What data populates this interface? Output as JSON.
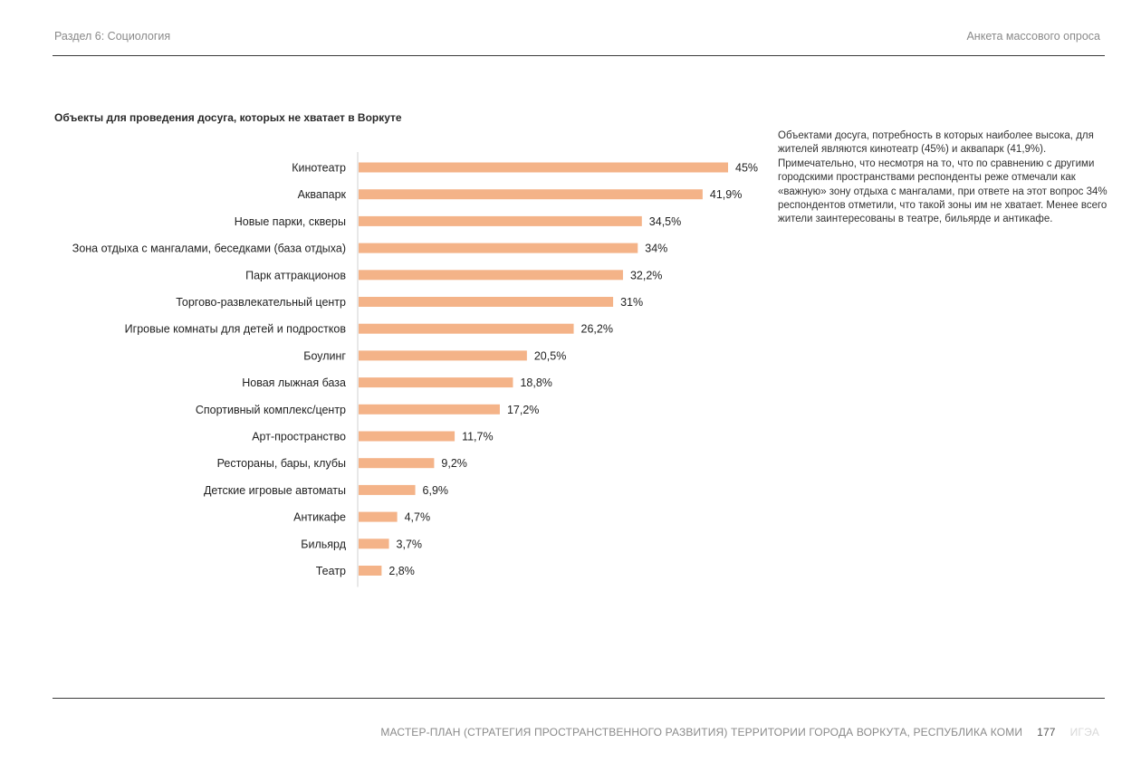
{
  "header": {
    "section": "Раздел 6: Социология",
    "document": "Анкета массового опроса"
  },
  "chart_data": {
    "type": "bar",
    "orientation": "horizontal",
    "title": "Объекты для проведения досуга, которых не хватает в Воркуте",
    "categories": [
      "Кинотеатр",
      "Аквапарк",
      "Новые парки, скверы",
      "Зона отдыха с мангалами, беседками (база отдыха)",
      "Парк аттракционов",
      "Торгово-развлекательный центр",
      "Игровые комнаты для детей и подростков",
      "Боулинг",
      "Новая лыжная база",
      "Спортивный комплекс/центр",
      "Арт-пространство",
      "Рестораны, бары, клубы",
      "Детские игровые автоматы",
      "Антикафе",
      "Бильярд",
      "Театр"
    ],
    "values": [
      45,
      41.9,
      34.5,
      34,
      32.2,
      31,
      26.2,
      20.5,
      18.8,
      17.2,
      11.7,
      9.2,
      6.9,
      4.7,
      3.7,
      2.8
    ],
    "labels": [
      "45%",
      "41,9%",
      "34,5%",
      "34%",
      "32,2%",
      "31%",
      "26,2%",
      "20,5%",
      "18,8%",
      "17,2%",
      "11,7%",
      "9,2%",
      "6,9%",
      "4,7%",
      "3,7%",
      "2,8%"
    ],
    "bar_color": "#f4b388",
    "xlim": [
      0,
      45
    ],
    "grid": false
  },
  "note": "Объектами досуга, потребность в которых наиболее высока, для жителей являются кинотеатр (45%) и аквапарк (41,9%). Примечательно, что несмотря на то, что по сравнению с другими городскими пространствами респонденты реже отмечали как «важную» зону отдыха с мангалами, при ответе на этот вопрос 34% респондентов отметили, что такой зоны им не хватает. Менее всего жители заинтересованы в театре, бильярде и антикафе.",
  "footer": {
    "text": "МАСТЕР-ПЛАН (СТРАТЕГИЯ ПРОСТРАНСТВЕННОГО РАЗВИТИЯ) ТЕРРИТОРИИ ГОРОДА ВОРКУТА, РЕСПУБЛИКА КОМИ",
    "page_number": "177",
    "mark": "ИГЭА"
  }
}
